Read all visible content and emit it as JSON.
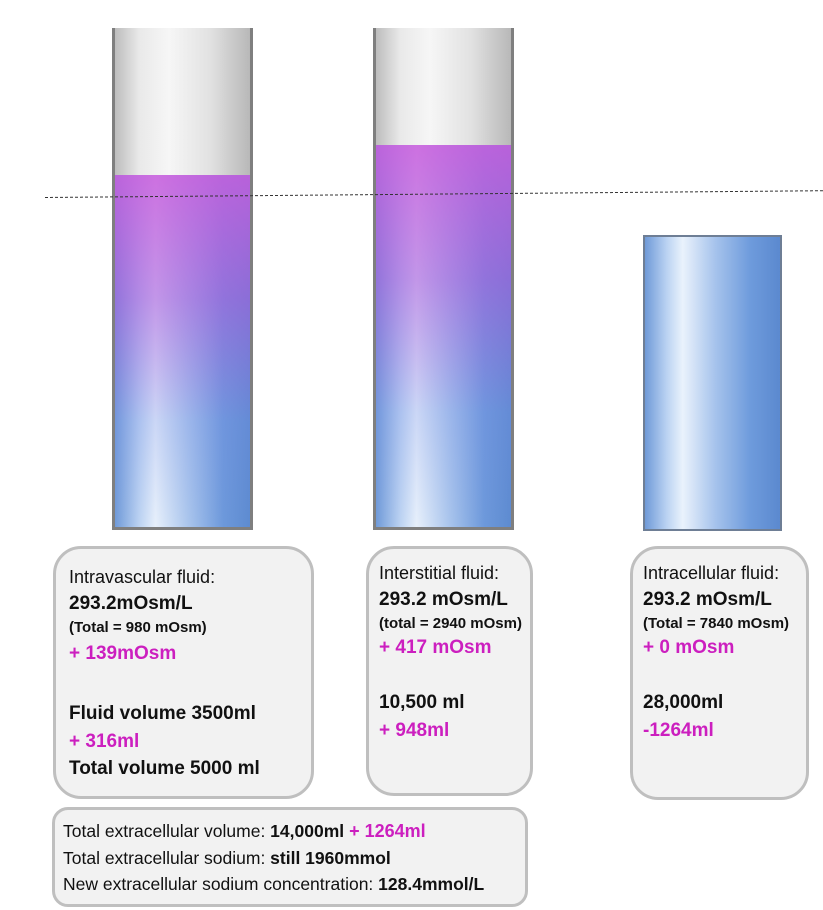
{
  "columns": [
    {
      "title": "Intravascular fluid:",
      "osmolality": "293.2mOsm/L",
      "total": "(Total = 980 mOsm)",
      "osm_change": "+ 139mOsm",
      "volume": "Fluid volume 3500ml",
      "volume_change": "+ 316ml",
      "extra": "Total volume 5000 ml"
    },
    {
      "title": "Interstitial fluid:",
      "osmolality": "293.2 mOsm/L",
      "total": "(total = 2940 mOsm)",
      "osm_change": "+ 417 mOsm",
      "volume": "10,500 ml",
      "volume_change": "+ 948ml"
    },
    {
      "title": "Intracellular fluid:",
      "osmolality": "293.2 mOsm/L",
      "total": "(Total = 7840 mOsm)",
      "osm_change": "+ 0 mOsm",
      "volume": "28,000ml",
      "volume_change": "-1264ml"
    }
  ],
  "summary": {
    "line1_label": "Total extracellular volume: ",
    "line1_value": "14,000ml",
    "line1_change": " + 1264ml",
    "line2_label": "Total extracellular sodium: ",
    "line2_value": "still 1960mmol",
    "line3_label": "New extracellular sodium concentration: ",
    "line3_value": "128.4mmol/L"
  },
  "colors": {
    "change_text": "#cc1fbf",
    "box_fill": "#f2f2f2",
    "box_border": "#bfbfbf"
  }
}
